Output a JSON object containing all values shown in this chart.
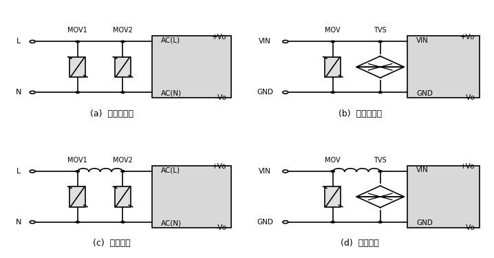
{
  "bg_color": "#ffffff",
  "box_color": "#d8d8d8",
  "line_color": "#000000",
  "label_a": "(a)  不恰当应用",
  "label_b": "(b)  不恰当应用",
  "label_c": "(c)  推荐应用",
  "label_d": "(d)  推荐应用",
  "font_size_label": 9,
  "font_size_component": 7.5
}
